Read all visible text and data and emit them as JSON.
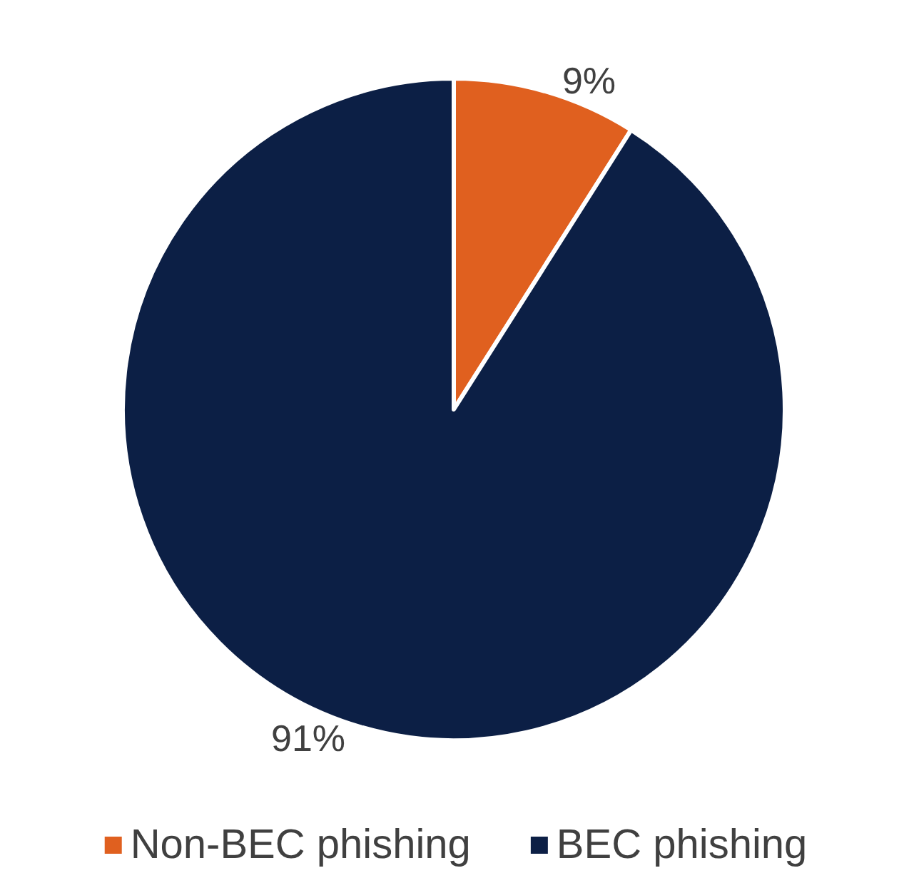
{
  "chart_data": {
    "type": "pie",
    "categories": [
      "Non-BEC phishing",
      "BEC phishing"
    ],
    "values": [
      9,
      91
    ],
    "colors": [
      "#e0601f",
      "#0c1f45"
    ],
    "value_labels": [
      "9%",
      "91%"
    ],
    "legend": "bottom"
  }
}
